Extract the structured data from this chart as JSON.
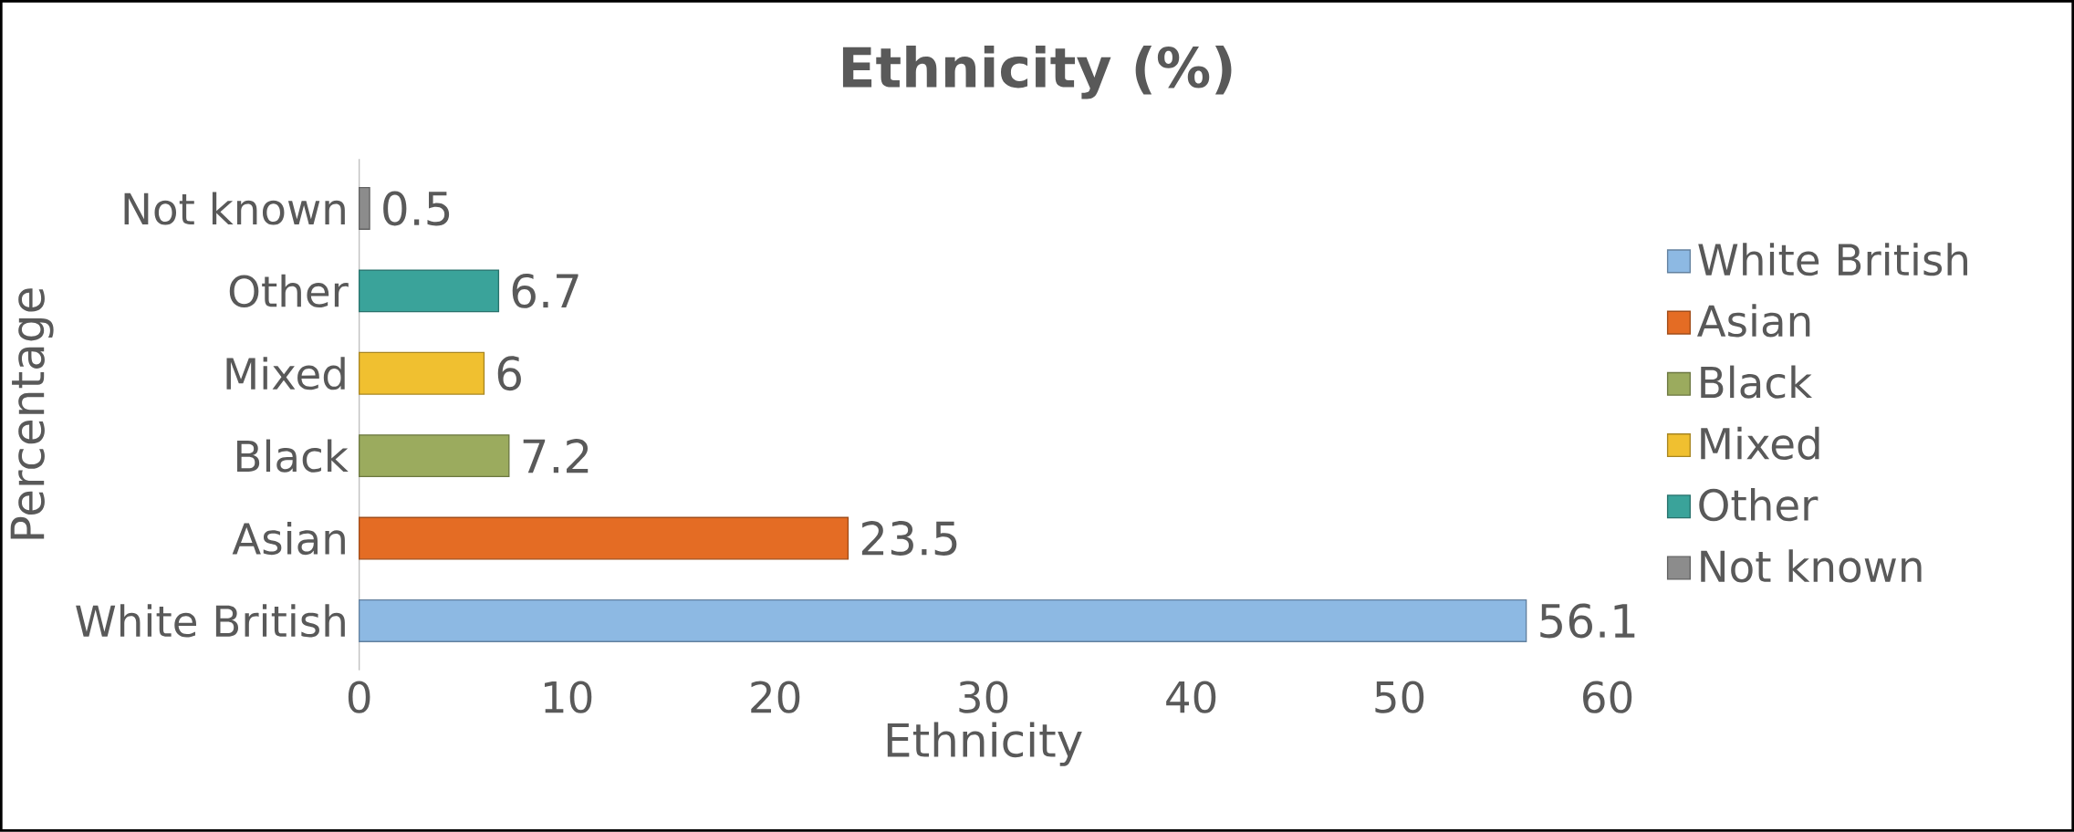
{
  "chart_data": {
    "type": "bar",
    "orientation": "horizontal",
    "title": "Ethnicity (%)",
    "xlabel": "Ethnicity",
    "ylabel": "Percentage",
    "categories": [
      "Not known",
      "Other",
      "Mixed",
      "Black",
      "Asian",
      "White British"
    ],
    "series": [
      {
        "name": "White British",
        "color": "#8db9e3",
        "values": [
          null,
          null,
          null,
          null,
          null,
          56.1
        ]
      },
      {
        "name": "Asian",
        "color": "#e46c24",
        "values": [
          null,
          null,
          null,
          null,
          23.5,
          null
        ]
      },
      {
        "name": "Black",
        "color": "#9bab5e",
        "values": [
          null,
          null,
          null,
          7.2,
          null,
          null
        ]
      },
      {
        "name": "Mixed",
        "color": "#f0c030",
        "values": [
          null,
          null,
          6,
          null,
          null,
          null
        ]
      },
      {
        "name": "Other",
        "color": "#3aa39a",
        "values": [
          null,
          6.7,
          null,
          null,
          null,
          null
        ]
      },
      {
        "name": "Not known",
        "color": "#8c8c8c",
        "values": [
          0.5,
          null,
          null,
          null,
          null,
          null
        ]
      }
    ],
    "xlim": [
      0,
      60
    ],
    "xticks": [
      0,
      10,
      20,
      30,
      40,
      50,
      60
    ],
    "data_labels": true,
    "legend": "right"
  }
}
